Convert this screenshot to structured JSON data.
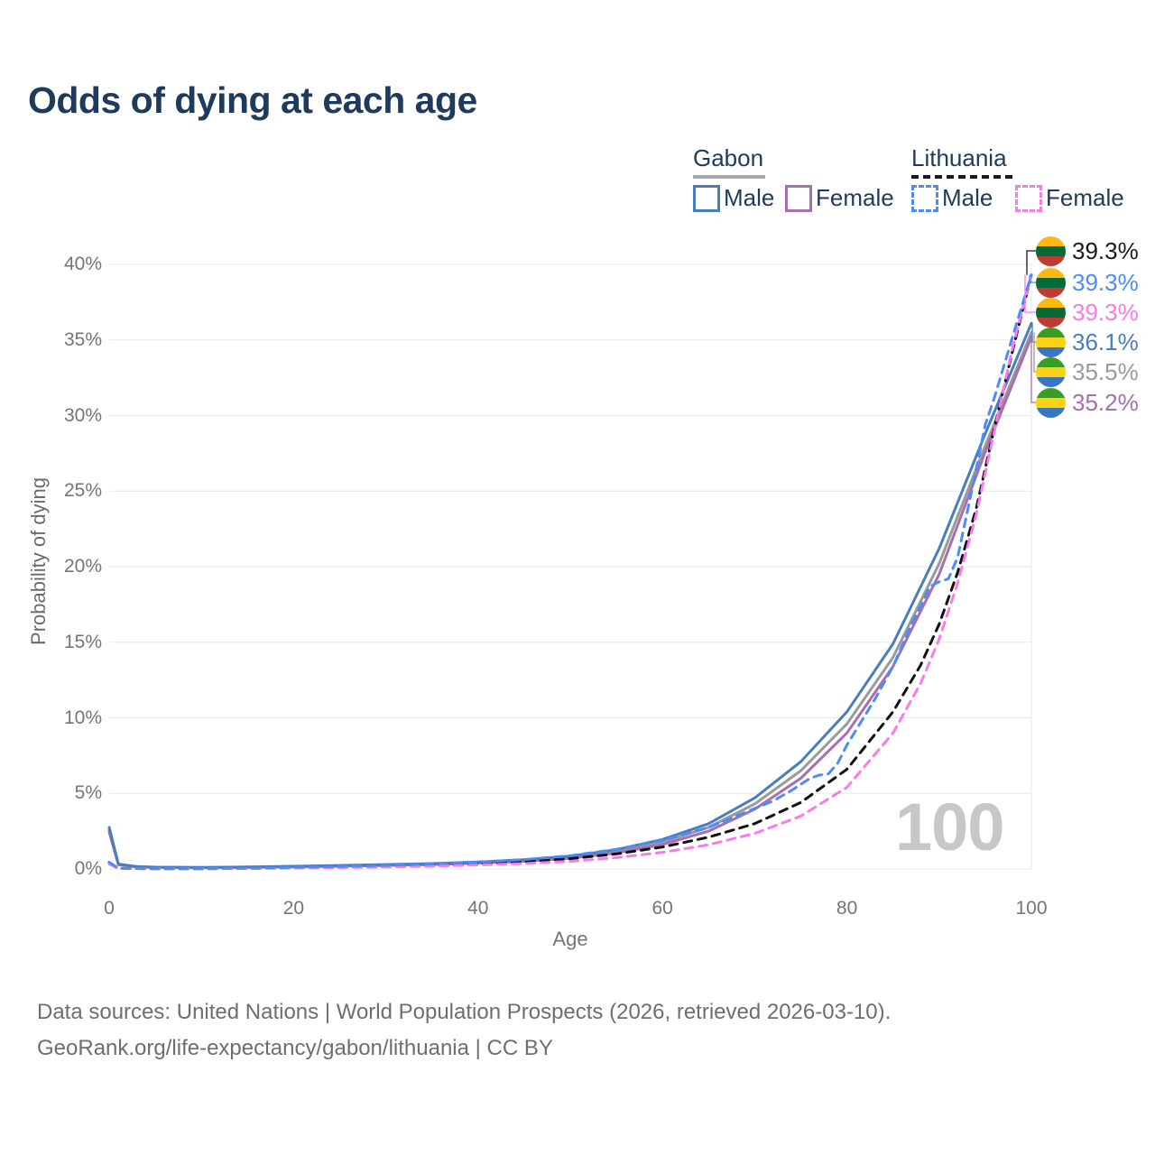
{
  "title": "Odds of dying at each age",
  "legend": {
    "groups": [
      {
        "label": "Gabon",
        "line_style": "solid",
        "underline_color": "#a8a8a8",
        "items": [
          {
            "label": "Male",
            "color": "#4a7dbe",
            "dashed": false
          },
          {
            "label": "Female",
            "color": "#a76fb2",
            "dashed": false
          }
        ]
      },
      {
        "label": "Lithuania",
        "line_style": "dashed",
        "underline_color": "#1a1a1a",
        "items": [
          {
            "label": "Male",
            "color": "#4c8cf5",
            "dashed": true
          },
          {
            "label": "Female",
            "color": "#fb7ae9",
            "dashed": true
          }
        ]
      }
    ]
  },
  "chart_data": {
    "type": "line",
    "title": "Odds of dying at each age",
    "xlabel": "Age",
    "ylabel": "Probability of dying",
    "xlim": [
      0,
      100
    ],
    "ylim": [
      0,
      40
    ],
    "xticks": [
      0,
      20,
      40,
      60,
      80,
      100
    ],
    "yticks": [
      0,
      5,
      10,
      15,
      20,
      25,
      30,
      35,
      40
    ],
    "ytick_suffix": "%",
    "grid": "horizontal",
    "grid_color": "#e7e7e7",
    "legend_position": "top-right",
    "watermark": "100",
    "series": [
      {
        "id": "gabon-total",
        "name": "Gabon total",
        "country": "Gabon",
        "sex": "total",
        "color": "#9a9a9a",
        "dashed": false,
        "points": [
          [
            0,
            2.6
          ],
          [
            1,
            0.3
          ],
          [
            3,
            0.15
          ],
          [
            5,
            0.11
          ],
          [
            10,
            0.09
          ],
          [
            15,
            0.12
          ],
          [
            20,
            0.16
          ],
          [
            25,
            0.21
          ],
          [
            30,
            0.26
          ],
          [
            35,
            0.33
          ],
          [
            40,
            0.42
          ],
          [
            45,
            0.56
          ],
          [
            50,
            0.78
          ],
          [
            55,
            1.17
          ],
          [
            60,
            1.78
          ],
          [
            65,
            2.75
          ],
          [
            70,
            4.3
          ],
          [
            75,
            6.5
          ],
          [
            80,
            9.6
          ],
          [
            85,
            14.0
          ],
          [
            90,
            20.2
          ],
          [
            95,
            28.0
          ],
          [
            100,
            35.5
          ]
        ]
      },
      {
        "id": "gabon-female",
        "name": "Gabon female",
        "country": "Gabon",
        "sex": "female",
        "color": "#a76fb2",
        "dashed": false,
        "points": [
          [
            0,
            2.45
          ],
          [
            1,
            0.28
          ],
          [
            3,
            0.14
          ],
          [
            5,
            0.1
          ],
          [
            10,
            0.085
          ],
          [
            15,
            0.11
          ],
          [
            20,
            0.14
          ],
          [
            25,
            0.18
          ],
          [
            30,
            0.23
          ],
          [
            35,
            0.29
          ],
          [
            40,
            0.38
          ],
          [
            45,
            0.51
          ],
          [
            50,
            0.71
          ],
          [
            55,
            1.06
          ],
          [
            60,
            1.62
          ],
          [
            65,
            2.5
          ],
          [
            70,
            3.95
          ],
          [
            75,
            6.0
          ],
          [
            80,
            9.0
          ],
          [
            85,
            13.4
          ],
          [
            90,
            19.5
          ],
          [
            95,
            27.6
          ],
          [
            100,
            35.2
          ]
        ]
      },
      {
        "id": "gabon-male",
        "name": "Gabon male",
        "country": "Gabon",
        "sex": "male",
        "color": "#4a7dbe",
        "dashed": false,
        "points": [
          [
            0,
            2.75
          ],
          [
            1,
            0.32
          ],
          [
            3,
            0.16
          ],
          [
            5,
            0.12
          ],
          [
            10,
            0.1
          ],
          [
            15,
            0.13
          ],
          [
            20,
            0.18
          ],
          [
            25,
            0.23
          ],
          [
            30,
            0.29
          ],
          [
            35,
            0.36
          ],
          [
            40,
            0.46
          ],
          [
            45,
            0.61
          ],
          [
            50,
            0.85
          ],
          [
            55,
            1.28
          ],
          [
            60,
            1.95
          ],
          [
            65,
            3.0
          ],
          [
            70,
            4.7
          ],
          [
            75,
            7.1
          ],
          [
            80,
            10.4
          ],
          [
            85,
            14.9
          ],
          [
            90,
            21.2
          ],
          [
            95,
            28.8
          ],
          [
            100,
            36.1
          ]
        ]
      },
      {
        "id": "lithuania-total",
        "name": "Lithuania total",
        "country": "Lithuania",
        "sex": "total",
        "color": "#111111",
        "dashed": true,
        "points": [
          [
            0,
            0.4
          ],
          [
            1,
            0.035
          ],
          [
            5,
            0.02
          ],
          [
            10,
            0.02
          ],
          [
            15,
            0.04
          ],
          [
            20,
            0.09
          ],
          [
            25,
            0.13
          ],
          [
            30,
            0.19
          ],
          [
            35,
            0.26
          ],
          [
            40,
            0.36
          ],
          [
            45,
            0.49
          ],
          [
            50,
            0.68
          ],
          [
            55,
            1.0
          ],
          [
            60,
            1.45
          ],
          [
            65,
            2.1
          ],
          [
            70,
            3.0
          ],
          [
            75,
            4.4
          ],
          [
            80,
            6.6
          ],
          [
            85,
            10.4
          ],
          [
            88,
            13.5
          ],
          [
            90,
            16.2
          ],
          [
            92,
            19.6
          ],
          [
            94,
            23.8
          ],
          [
            96,
            29.2
          ],
          [
            98,
            34.4
          ],
          [
            100,
            39.3
          ]
        ]
      },
      {
        "id": "lithuania-female",
        "name": "Lithuania female",
        "country": "Lithuania",
        "sex": "female",
        "color": "#fb7ae9",
        "dashed": true,
        "points": [
          [
            0,
            0.33
          ],
          [
            1,
            0.03
          ],
          [
            5,
            0.015
          ],
          [
            10,
            0.015
          ],
          [
            15,
            0.03
          ],
          [
            20,
            0.06
          ],
          [
            25,
            0.09
          ],
          [
            30,
            0.13
          ],
          [
            35,
            0.18
          ],
          [
            40,
            0.26
          ],
          [
            45,
            0.36
          ],
          [
            50,
            0.5
          ],
          [
            55,
            0.75
          ],
          [
            60,
            1.1
          ],
          [
            65,
            1.6
          ],
          [
            70,
            2.35
          ],
          [
            75,
            3.5
          ],
          [
            80,
            5.4
          ],
          [
            85,
            9.0
          ],
          [
            88,
            12.3
          ],
          [
            90,
            15.2
          ],
          [
            92,
            18.9
          ],
          [
            94,
            23.4
          ],
          [
            96,
            29.0
          ],
          [
            98,
            34.6
          ],
          [
            100,
            39.3
          ]
        ]
      },
      {
        "id": "lithuania-male",
        "name": "Lithuania male",
        "country": "Lithuania",
        "sex": "male",
        "color": "#4c8cf5",
        "dashed": true,
        "points": [
          [
            0,
            0.45
          ],
          [
            1,
            0.04
          ],
          [
            5,
            0.02
          ],
          [
            10,
            0.02
          ],
          [
            15,
            0.05
          ],
          [
            20,
            0.11
          ],
          [
            25,
            0.17
          ],
          [
            30,
            0.24
          ],
          [
            35,
            0.33
          ],
          [
            40,
            0.45
          ],
          [
            45,
            0.62
          ],
          [
            50,
            0.88
          ],
          [
            55,
            1.3
          ],
          [
            60,
            1.9
          ],
          [
            65,
            2.75
          ],
          [
            70,
            4.0
          ],
          [
            72,
            4.5
          ],
          [
            74,
            5.2
          ],
          [
            76,
            6.0
          ],
          [
            77,
            6.2
          ],
          [
            78,
            6.3
          ],
          [
            79,
            7.0
          ],
          [
            80,
            8.2
          ],
          [
            81,
            9.2
          ],
          [
            83,
            11.2
          ],
          [
            85,
            13.4
          ],
          [
            87,
            16.2
          ],
          [
            88,
            17.4
          ],
          [
            89,
            18.7
          ],
          [
            90,
            19.0
          ],
          [
            91,
            19.2
          ],
          [
            92,
            20.6
          ],
          [
            93,
            23.5
          ],
          [
            94,
            26.4
          ],
          [
            95,
            29.4
          ],
          [
            96,
            31.2
          ],
          [
            98,
            35.3
          ],
          [
            100,
            39.3
          ]
        ]
      }
    ]
  },
  "end_labels": [
    {
      "id": "lithuania-total",
      "value": "39.3%",
      "color": "#1a1a1a",
      "flag": "lithuania",
      "end_pct": 39.3
    },
    {
      "id": "lithuania-male",
      "value": "39.3%",
      "color": "#4c8cf5",
      "flag": "lithuania",
      "end_pct": 39.3
    },
    {
      "id": "lithuania-female",
      "value": "39.3%",
      "color": "#fb7ae9",
      "flag": "lithuania",
      "end_pct": 39.3
    },
    {
      "id": "gabon-male",
      "value": "36.1%",
      "color": "#4a7dbe",
      "flag": "gabon",
      "end_pct": 36.1
    },
    {
      "id": "gabon-total",
      "value": "35.5%",
      "color": "#9a9a9a",
      "flag": "gabon",
      "end_pct": 35.5
    },
    {
      "id": "gabon-female",
      "value": "35.2%",
      "color": "#a76fb2",
      "flag": "gabon",
      "end_pct": 35.2
    }
  ],
  "flags": {
    "lithuania": [
      "#FDB913",
      "#046A38",
      "#BE3A34"
    ],
    "gabon": [
      "#3A9D23",
      "#FCD116",
      "#3A75C4"
    ]
  },
  "footer": {
    "line1": "Data sources: United Nations | World Population Prospects (2026, retrieved 2026-03-10).",
    "line2": "GeoRank.org/life-expectancy/gabon/lithuania | CC BY"
  }
}
